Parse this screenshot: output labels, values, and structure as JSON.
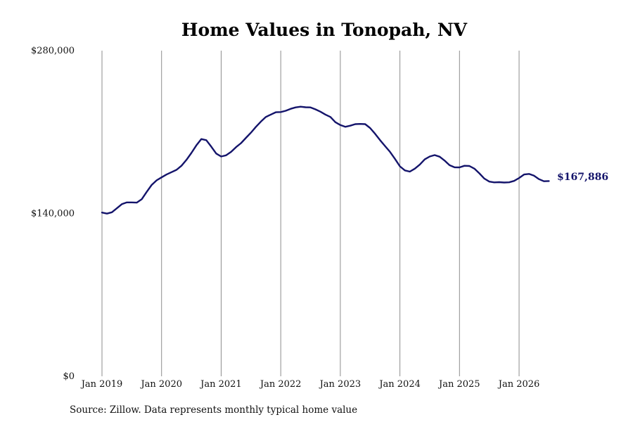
{
  "chart_data": {
    "type": "line",
    "title": "Home Values in Tonopah, NV",
    "source": "Source: Zillow. Data represents monthly typical home value",
    "xlabel": "",
    "ylabel": "",
    "y_ticks": [
      "$280,000",
      "$140,000",
      "$0"
    ],
    "y_tick_values": [
      280000,
      140000,
      0
    ],
    "ylim": [
      0,
      280000
    ],
    "x_ticks": [
      "Jan 2019",
      "Jan 2020",
      "Jan 2021",
      "Jan 2022",
      "Jan 2023",
      "Jan 2024",
      "Jan 2025",
      "Jan 2026"
    ],
    "grid": "vertical",
    "line_color": "#14146b",
    "end_label": "$167,886",
    "series": [
      {
        "x": [
          "2019-01",
          "2019-02",
          "2019-03",
          "2019-04",
          "2019-05",
          "2019-06",
          "2019-07",
          "2019-08",
          "2019-09",
          "2019-10",
          "2019-11",
          "2019-12",
          "2020-01",
          "2020-02",
          "2020-03",
          "2020-04",
          "2020-05",
          "2020-06",
          "2020-07",
          "2020-08",
          "2020-09",
          "2020-10",
          "2020-11",
          "2020-12",
          "2021-01",
          "2021-02",
          "2021-03",
          "2021-04",
          "2021-05",
          "2021-06",
          "2021-07",
          "2021-08",
          "2021-09",
          "2021-10",
          "2021-11",
          "2021-12",
          "2022-01",
          "2022-02",
          "2022-03",
          "2022-04",
          "2022-05",
          "2022-06",
          "2022-07",
          "2022-08",
          "2022-09",
          "2022-10",
          "2022-11",
          "2022-12",
          "2023-01",
          "2023-02",
          "2023-03",
          "2023-04",
          "2023-05",
          "2023-06",
          "2023-07",
          "2023-08",
          "2023-09",
          "2023-10",
          "2023-11",
          "2023-12",
          "2024-01",
          "2024-02",
          "2024-03",
          "2024-04",
          "2024-05",
          "2024-06",
          "2024-07",
          "2024-08",
          "2024-09",
          "2024-10",
          "2024-11",
          "2024-12",
          "2025-01",
          "2025-02",
          "2025-03",
          "2025-04",
          "2025-05",
          "2025-06",
          "2025-07",
          "2025-08",
          "2025-09",
          "2025-10",
          "2025-11",
          "2025-12",
          "2026-01",
          "2026-02",
          "2026-03",
          "2026-04",
          "2026-05",
          "2026-06",
          "2026-07"
        ],
        "values": [
          140800,
          139900,
          141000,
          144500,
          148000,
          149500,
          149500,
          149300,
          152200,
          158500,
          164500,
          168500,
          171000,
          173500,
          175500,
          177500,
          181000,
          186000,
          192000,
          198500,
          204000,
          203000,
          197500,
          191500,
          189000,
          190000,
          193000,
          197000,
          200500,
          205000,
          209500,
          214500,
          219000,
          223000,
          225000,
          227000,
          227200,
          228300,
          230000,
          231200,
          231800,
          231300,
          231200,
          229500,
          227500,
          225000,
          223000,
          218500,
          216000,
          214500,
          215500,
          216800,
          217000,
          216800,
          213500,
          208500,
          203000,
          198000,
          193000,
          187000,
          180500,
          177000,
          176000,
          178500,
          182000,
          186500,
          189000,
          190200,
          188800,
          185500,
          181500,
          179700,
          179600,
          181000,
          180800,
          178500,
          174500,
          170000,
          167400,
          166700,
          166900,
          166600,
          166800,
          168000,
          170500,
          173500,
          174000,
          172500,
          169500,
          167700,
          167886
        ]
      }
    ]
  }
}
